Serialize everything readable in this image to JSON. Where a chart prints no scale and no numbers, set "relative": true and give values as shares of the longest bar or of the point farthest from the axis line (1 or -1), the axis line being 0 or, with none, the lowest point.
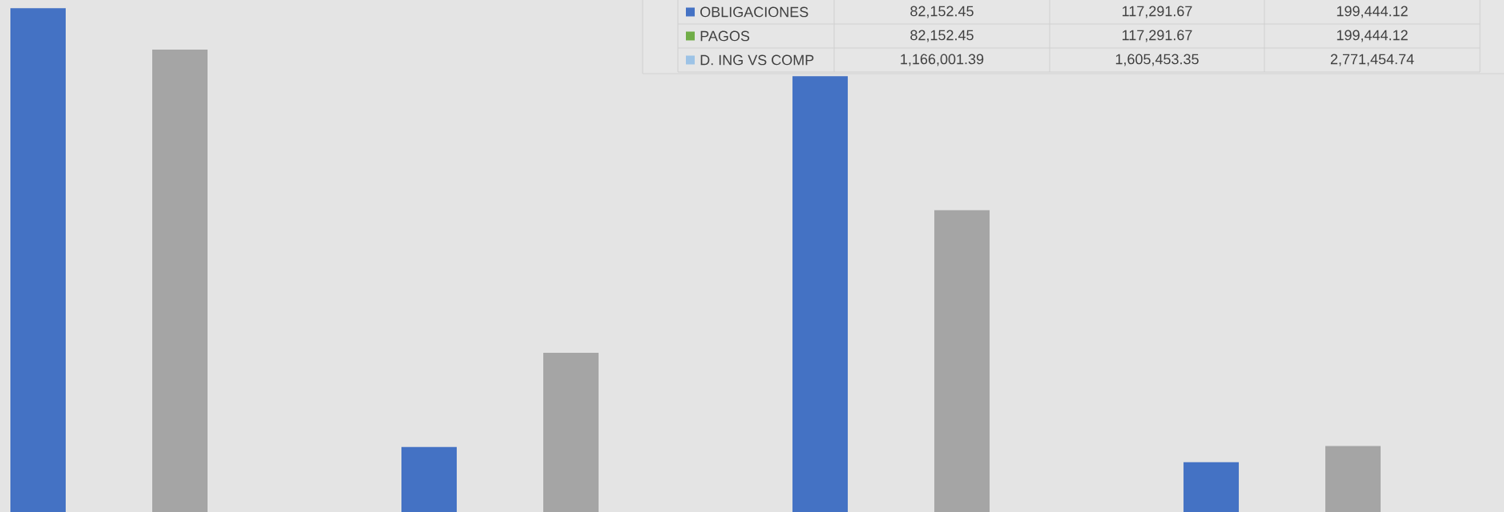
{
  "chart_data": [
    {
      "type": "bar",
      "relative": true,
      "categories": [
        null,
        null,
        null,
        null
      ],
      "series": [
        {
          "color": "#4472c4",
          "values": [
            1,
            0.129,
            0.865,
            0.099
          ]
        },
        {
          "color": "#a5a5a5",
          "values": [
            0.918,
            0.316,
            0.599,
            0.131
          ]
        }
      ]
    },
    {
      "type": "other",
      "categories": [
        "OBLIGACIONES",
        "PAGOS",
        "D. ING VS COMP"
      ],
      "colors": [
        "#4472c4",
        "#70ad47",
        "#9dc3e6"
      ],
      "annotations": [
        "82,152.45",
        "117,291.67",
        "199,444.12",
        "82,152.45",
        "117,291.67",
        "199,444.12",
        "1,166,001.39",
        "1,605,453.35",
        "2,771,454.74"
      ]
    }
  ]
}
